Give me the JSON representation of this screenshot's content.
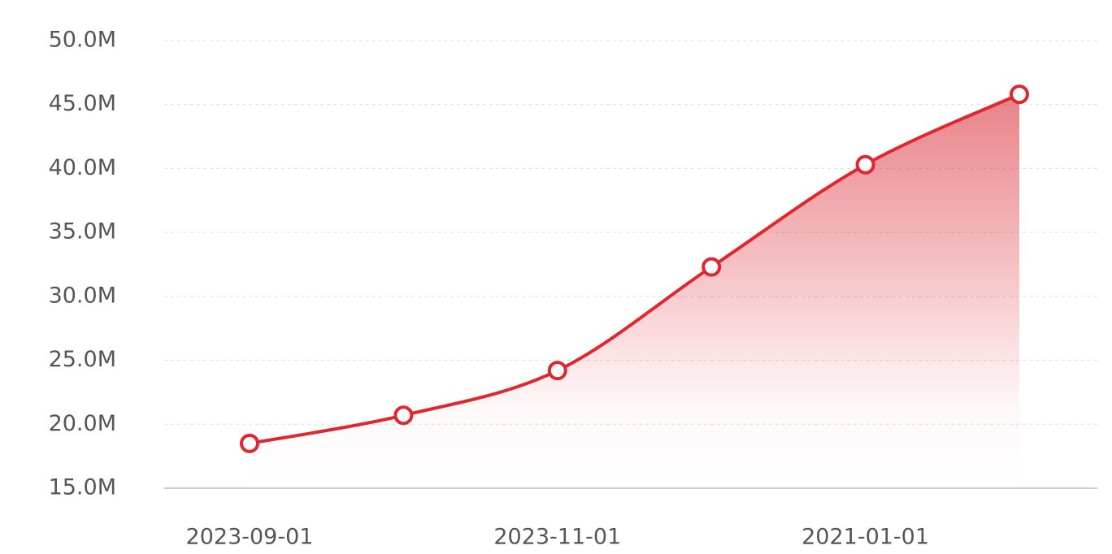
{
  "chart_data": {
    "type": "line",
    "categories": [
      "2023-09-01",
      null,
      "2023-11-01",
      null,
      "2021-01-01",
      null
    ],
    "series": [
      {
        "color": "#e0262e",
        "values": [
          18500000,
          20700000,
          24200000,
          32300000,
          40300000,
          45800000
        ]
      }
    ],
    "ylim": [
      15000000,
      50000000
    ],
    "yticks": [
      {
        "value": 15000000,
        "label": "15.0M"
      },
      {
        "value": 20000000,
        "label": "20.0M"
      },
      {
        "value": 25000000,
        "label": "25.0M"
      },
      {
        "value": 30000000,
        "label": "30.0M"
      },
      {
        "value": 35000000,
        "label": "35.0M"
      },
      {
        "value": 40000000,
        "label": "40.0M"
      },
      {
        "value": 45000000,
        "label": "45.0M"
      },
      {
        "value": 50000000,
        "label": "50.0M"
      }
    ],
    "grid": true
  }
}
